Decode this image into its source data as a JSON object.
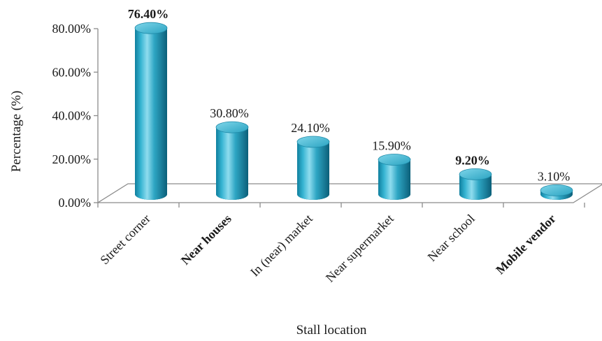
{
  "chart_data": {
    "type": "bar",
    "title": "",
    "xlabel": "Stall location",
    "ylabel": "Percentage (%)",
    "ylim": [
      0,
      80
    ],
    "y_ticks": [
      "0.00%",
      "20.00%",
      "40.00%",
      "60.00%",
      "80.00%"
    ],
    "y_tick_values": [
      0,
      20,
      40,
      60,
      80
    ],
    "categories": [
      "Street corner",
      "Near houses",
      "In (near) market",
      "Near supermarket",
      "Near school",
      "Mobile vendor"
    ],
    "values": [
      76.4,
      30.8,
      24.1,
      15.9,
      9.2,
      3.1
    ],
    "data_labels": [
      "76.40%",
      "30.80%",
      "24.10%",
      "15.90%",
      "9.20%",
      "3.10%"
    ],
    "bold_data_labels": [
      true,
      false,
      false,
      false,
      true,
      false
    ],
    "bold_categories": [
      false,
      true,
      false,
      false,
      false,
      true
    ],
    "grid": false,
    "legend": "none",
    "style": "3d-cylinder",
    "colors": {
      "bar": "#2aa3c1",
      "bar_dark": "#0d6f8c",
      "bar_light": "#9fe3f2",
      "axis": "#8c8c8c"
    }
  }
}
